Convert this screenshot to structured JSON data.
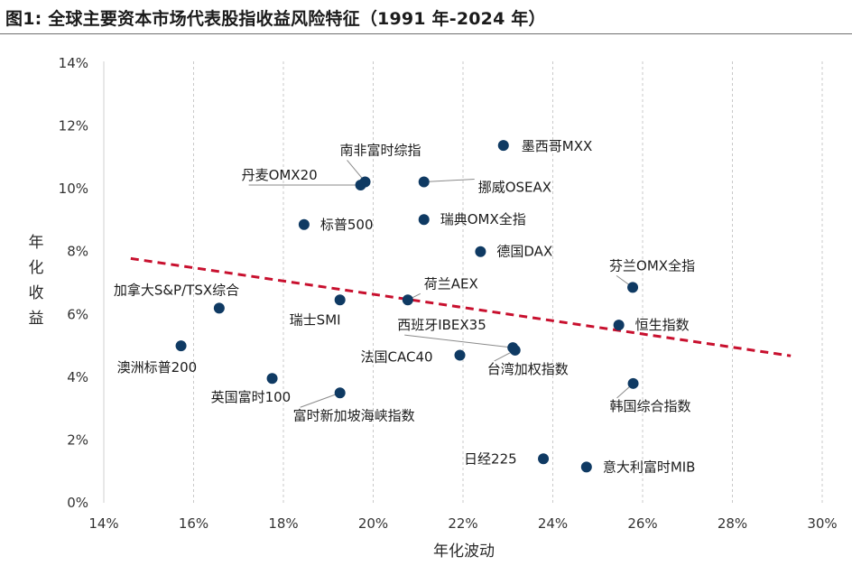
{
  "figure": {
    "title": "图1: 全球主要资本市场代表股指收益风险特征（1991 年-2024 年）"
  },
  "chart_data": {
    "type": "scatter",
    "xlabel": "年化波动",
    "ylabel": "年化收益",
    "xlim": [
      0.14,
      0.3
    ],
    "ylim": [
      0.0,
      0.14
    ],
    "x_ticks": [
      "14%",
      "16%",
      "18%",
      "20%",
      "22%",
      "24%",
      "26%",
      "28%",
      "30%"
    ],
    "y_ticks": [
      "0%",
      "2%",
      "4%",
      "6%",
      "8%",
      "10%",
      "12%",
      "14%"
    ],
    "grid": "vertical dashed",
    "point_color": "#0f3a63",
    "trend_color": "#c8102e",
    "trendline": {
      "x": [
        0.146,
        0.293
      ],
      "y": [
        0.0778,
        0.0468
      ]
    },
    "points": [
      {
        "label": "墨西哥MXX",
        "x": 0.229,
        "y": 0.1138
      },
      {
        "label": "南非富时综指",
        "x": 0.1982,
        "y": 0.1022
      },
      {
        "label": "丹麦OMX20",
        "x": 0.1972,
        "y": 0.1012
      },
      {
        "label": "挪威OSEAX",
        "x": 0.2113,
        "y": 0.1022
      },
      {
        "label": "瑞典OMX全指",
        "x": 0.2113,
        "y": 0.0902
      },
      {
        "label": "标普500",
        "x": 0.1846,
        "y": 0.0886
      },
      {
        "label": "德国DAX",
        "x": 0.2239,
        "y": 0.08
      },
      {
        "label": "芬兰OMX全指",
        "x": 0.2578,
        "y": 0.0686
      },
      {
        "label": "加拿大S&P/TSX综合",
        "x": 0.1657,
        "y": 0.062
      },
      {
        "label": "瑞士SMI",
        "x": 0.1926,
        "y": 0.0646
      },
      {
        "label": "荷兰AEX",
        "x": 0.2077,
        "y": 0.0646
      },
      {
        "label": "恒生指数",
        "x": 0.2547,
        "y": 0.0566
      },
      {
        "label": "西班牙IBEX35",
        "x": 0.2311,
        "y": 0.0494
      },
      {
        "label": "台湾加权指数",
        "x": 0.2316,
        "y": 0.0486
      },
      {
        "label": "澳洲标普200",
        "x": 0.1572,
        "y": 0.05
      },
      {
        "label": "法国CAC40",
        "x": 0.2193,
        "y": 0.047
      },
      {
        "label": "英国富时100",
        "x": 0.1775,
        "y": 0.0396
      },
      {
        "label": "韩国综合指数",
        "x": 0.2579,
        "y": 0.038
      },
      {
        "label": "富时新加坡海峡指数",
        "x": 0.1926,
        "y": 0.035
      },
      {
        "label": "日经225",
        "x": 0.2379,
        "y": 0.014
      },
      {
        "label": "意大利富时MIB",
        "x": 0.2475,
        "y": 0.0114
      }
    ]
  }
}
